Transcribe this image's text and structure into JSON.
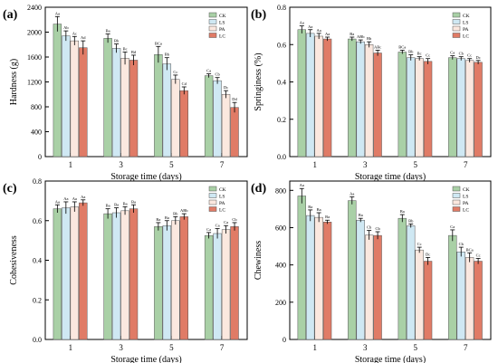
{
  "colors": {
    "CK": "#a9d0a6",
    "LS": "#cfe8f3",
    "PA": "#fbe8df",
    "LC": "#e07b66"
  },
  "legend": [
    "CK",
    "LS",
    "PA",
    "LC"
  ],
  "chart_data": [
    {
      "panel": "(a)",
      "type": "bar",
      "xlabel": "Storage time (days)",
      "ylabel": "Hardness (g)",
      "categories": [
        "1",
        "3",
        "5",
        "7"
      ],
      "ylim": [
        0,
        2400
      ],
      "yticks": [
        "0",
        "400",
        "800",
        "1200",
        "1600",
        "2000",
        "2400"
      ],
      "ytick_values": [
        0,
        400,
        800,
        1200,
        1600,
        2000,
        2400
      ],
      "series": [
        {
          "name": "CK",
          "values": [
            2130,
            1900,
            1640,
            1300
          ],
          "errors": [
            120,
            70,
            130,
            30
          ],
          "labels": [
            "Aa",
            "Ba",
            "BCa",
            "Ca"
          ]
        },
        {
          "name": "LS",
          "values": [
            1940,
            1740,
            1490,
            1220
          ],
          "errors": [
            80,
            70,
            100,
            50
          ],
          "labels": [
            "Ab",
            "Bb",
            "Bb",
            "Cb"
          ]
        },
        {
          "name": "PA",
          "values": [
            1860,
            1580,
            1240,
            1000
          ],
          "errors": [
            70,
            100,
            70,
            60
          ],
          "labels": [
            "Ac",
            "Bc",
            "Cc",
            "Dc"
          ]
        },
        {
          "name": "LC",
          "values": [
            1750,
            1550,
            1060,
            790
          ],
          "errors": [
            110,
            80,
            60,
            80
          ],
          "labels": [
            "Ad",
            "Bd",
            "Cd",
            "Dd"
          ]
        }
      ]
    },
    {
      "panel": "(b)",
      "type": "bar",
      "xlabel": "Storage time (days)",
      "ylabel": "Springiness (%)",
      "categories": [
        "1",
        "3",
        "5",
        "7"
      ],
      "ylim": [
        0,
        0.8
      ],
      "yticks": [
        "0.0",
        "0.2",
        "0.4",
        "0.6",
        "0.8"
      ],
      "ytick_values": [
        0,
        0.2,
        0.4,
        0.6,
        0.8
      ],
      "series": [
        {
          "name": "CK",
          "values": [
            0.68,
            0.63,
            0.56,
            0.53
          ],
          "errors": [
            0.02,
            0.01,
            0.01,
            0.01
          ],
          "labels": [
            "Aa",
            "Ba",
            "BCa",
            "Ca"
          ]
        },
        {
          "name": "LS",
          "values": [
            0.66,
            0.615,
            0.53,
            0.525
          ],
          "errors": [
            0.02,
            0.01,
            0.015,
            0.01
          ],
          "labels": [
            "Aa",
            "ABb",
            "Bb",
            "Cb"
          ]
        },
        {
          "name": "PA",
          "values": [
            0.645,
            0.6,
            0.525,
            0.515
          ],
          "errors": [
            0.015,
            0.015,
            0.01,
            0.01
          ],
          "labels": [
            "Aa",
            "Bb",
            "Bc",
            "Cc"
          ]
        },
        {
          "name": "LC",
          "values": [
            0.63,
            0.555,
            0.51,
            0.505
          ],
          "errors": [
            0.01,
            0.015,
            0.015,
            0.01
          ],
          "labels": [
            "Aa",
            "ABc",
            "Cc",
            "Dc"
          ]
        }
      ]
    },
    {
      "panel": "(c)",
      "type": "bar",
      "xlabel": "Storage time (days)",
      "ylabel": "Cohesiveness",
      "categories": [
        "1",
        "3",
        "5",
        "7"
      ],
      "ylim": [
        0,
        0.8
      ],
      "yticks": [
        "0.0",
        "0.2",
        "0.4",
        "0.6",
        "0.8"
      ],
      "ytick_values": [
        0,
        0.2,
        0.4,
        0.6,
        0.8
      ],
      "series": [
        {
          "name": "CK",
          "values": [
            0.66,
            0.635,
            0.57,
            0.525
          ],
          "errors": [
            0.02,
            0.025,
            0.02,
            0.015
          ],
          "labels": [
            "Aa",
            "Ba",
            "Ba",
            "Ca"
          ]
        },
        {
          "name": "LS",
          "values": [
            0.665,
            0.64,
            0.575,
            0.535
          ],
          "errors": [
            0.03,
            0.025,
            0.025,
            0.025
          ],
          "labels": [
            "Aa",
            "Ba",
            "Ba",
            "Ca"
          ]
        },
        {
          "name": "PA",
          "values": [
            0.67,
            0.65,
            0.6,
            0.555
          ],
          "errors": [
            0.025,
            0.02,
            0.02,
            0.02
          ],
          "labels": [
            "Aa",
            "Ba",
            "Bb",
            "Ca"
          ]
        },
        {
          "name": "LC",
          "values": [
            0.69,
            0.66,
            0.62,
            0.57
          ],
          "errors": [
            0.015,
            0.02,
            0.015,
            0.02
          ],
          "labels": [
            "Aa",
            "Ba",
            "ABb",
            "Cb"
          ]
        }
      ]
    },
    {
      "panel": "(d)",
      "type": "bar",
      "xlabel": "Storage time (days)",
      "ylabel": "Chewiness",
      "categories": [
        "1",
        "3",
        "5",
        "7"
      ],
      "ylim": [
        0,
        850
      ],
      "yticks": [
        "0",
        "200",
        "400",
        "600",
        "800"
      ],
      "ytick_values": [
        0,
        200,
        400,
        600,
        800
      ],
      "series": [
        {
          "name": "CK",
          "values": [
            770,
            745,
            650,
            558
          ],
          "errors": [
            40,
            20,
            20,
            30
          ],
          "labels": [
            "Aa",
            "Aa",
            "Ba",
            "Ca"
          ]
        },
        {
          "name": "LS",
          "values": [
            665,
            640,
            610,
            470
          ],
          "errors": [
            30,
            10,
            10,
            25
          ],
          "labels": [
            "Ba",
            "Ba",
            "Bb",
            "Cb"
          ]
        },
        {
          "name": "PA",
          "values": [
            655,
            560,
            480,
            440
          ],
          "errors": [
            25,
            25,
            15,
            25
          ],
          "labels": [
            "Ba",
            "Cb",
            "Cc",
            "BCa"
          ]
        },
        {
          "name": "LC",
          "values": [
            630,
            558,
            420,
            420
          ],
          "errors": [
            10,
            20,
            20,
            15
          ],
          "labels": [
            "Ba",
            "Cb",
            "Dc",
            "Cc"
          ]
        }
      ]
    }
  ]
}
